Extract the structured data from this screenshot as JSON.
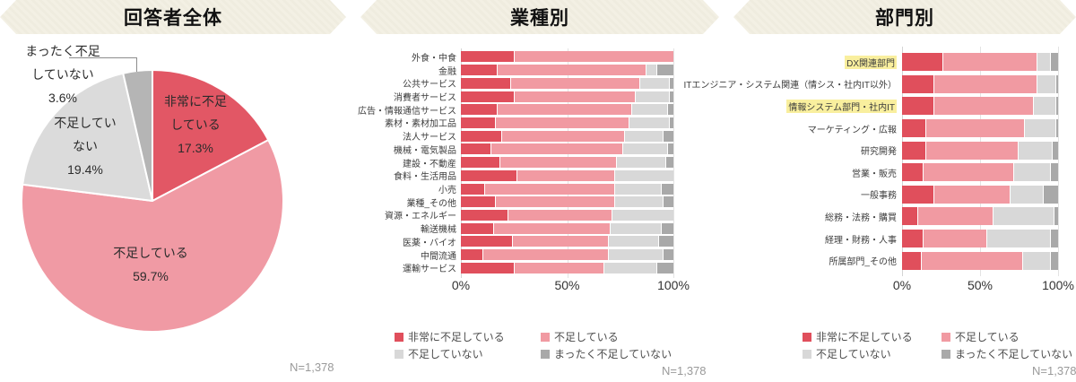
{
  "panels": {
    "overall": {
      "title": "回答者全体",
      "n_label": "N=1,378"
    },
    "industry": {
      "title": "業種別",
      "n_label": "N=1,378"
    },
    "department": {
      "title": "部門別",
      "n_label": "N=1,378"
    }
  },
  "colors": {
    "very_short": "#e04f5c",
    "short": "#f19aa2",
    "not_short": "#d8d8d8",
    "not_at_all": "#a9a9a9",
    "pie": [
      "#e25765",
      "#f09aa4",
      "#dbdbdb",
      "#b5b5b5"
    ],
    "highlight": "#f9ef9e",
    "banner_bg": "#f1eee2"
  },
  "legend": {
    "items": [
      {
        "label": "非常に不足している",
        "color": "#e04f5c"
      },
      {
        "label": "不足している",
        "color": "#f19aa2"
      },
      {
        "label": "不足していない",
        "color": "#d8d8d8"
      },
      {
        "label": "まったく不足していない",
        "color": "#a9a9a9"
      }
    ]
  },
  "chart_data": [
    {
      "type": "pie",
      "title": "回答者全体",
      "labels": [
        "非常に不足している",
        "不足している",
        "不足していない",
        "まったく不足していない"
      ],
      "values": [
        17.3,
        59.7,
        19.4,
        3.6
      ],
      "colors": [
        "#e25765",
        "#f09aa4",
        "#dbdbdb",
        "#b5b5b5"
      ],
      "display_labels": [
        {
          "lines": [
            "非常に不足",
            "している",
            "17.3%"
          ]
        },
        {
          "lines": [
            "不足している",
            "59.7%"
          ]
        },
        {
          "lines": [
            "不足してい",
            "ない",
            "19.4%"
          ]
        },
        {
          "lines": [
            "まったく不足",
            "していない",
            "3.6%"
          ]
        }
      ],
      "n": "N=1,378"
    },
    {
      "type": "bar",
      "stacked": true,
      "orientation": "horizontal",
      "title": "業種別",
      "x_ticks": [
        "0%",
        "50%",
        "100%"
      ],
      "xlim": [
        0,
        100
      ],
      "categories": [
        "外食・中食",
        "金融",
        "公共サービス",
        "消費者サービス",
        "広告・情報通信サービス",
        "素材・素材加工品",
        "法人サービス",
        "機械・電気製品",
        "建設・不動産",
        "食料・生活用品",
        "小売",
        "業種_その他",
        "資源・エネルギー",
        "輸送機械",
        "医薬・バイオ",
        "中間流通",
        "運輸サービス"
      ],
      "highlighted": [],
      "series": [
        {
          "name": "非常に不足している",
          "values": [
            25,
            17,
            23,
            25,
            17,
            16,
            19,
            14,
            18,
            26,
            11,
            16,
            22,
            15,
            24,
            10,
            25
          ]
        },
        {
          "name": "不足している",
          "values": [
            75,
            70,
            61,
            57,
            63,
            63,
            58,
            62,
            55,
            46,
            61,
            56,
            49,
            55,
            45,
            59,
            42
          ]
        },
        {
          "name": "不足していない",
          "values": [
            0,
            5,
            14,
            16,
            17,
            19,
            18,
            21,
            23,
            28,
            22,
            23,
            29,
            24,
            24,
            26,
            25
          ]
        },
        {
          "name": "まったく不足していない",
          "values": [
            0,
            8,
            2,
            2,
            3,
            2,
            5,
            3,
            4,
            0,
            6,
            5,
            0,
            6,
            7,
            5,
            8
          ]
        }
      ],
      "n": "N=1,378"
    },
    {
      "type": "bar",
      "stacked": true,
      "orientation": "horizontal",
      "title": "部門別",
      "x_ticks": [
        "0%",
        "50%",
        "100%"
      ],
      "xlim": [
        0,
        100
      ],
      "categories": [
        "DX関連部門",
        "ITエンジニア・システム関連（情シス・社内IT以外）",
        "情報システム部門・社内IT",
        "マーケティング・広報",
        "研究開発",
        "営業・販売",
        "一般事務",
        "総務・法務・購買",
        "経理・財務・人事",
        "所属部門_その他"
      ],
      "highlighted": [
        0,
        2
      ],
      "series": [
        {
          "name": "非常に不足している",
          "values": [
            26,
            20,
            20,
            15,
            15,
            13,
            20,
            10,
            13,
            12
          ]
        },
        {
          "name": "不足している",
          "values": [
            60,
            66,
            64,
            63,
            59,
            58,
            49,
            48,
            41,
            65
          ]
        },
        {
          "name": "不足していない",
          "values": [
            9,
            12,
            14,
            20,
            22,
            24,
            21,
            39,
            41,
            18
          ]
        },
        {
          "name": "まったく不足していない",
          "values": [
            5,
            2,
            2,
            2,
            4,
            5,
            10,
            3,
            5,
            5
          ]
        }
      ],
      "n": "N=1,378"
    }
  ]
}
